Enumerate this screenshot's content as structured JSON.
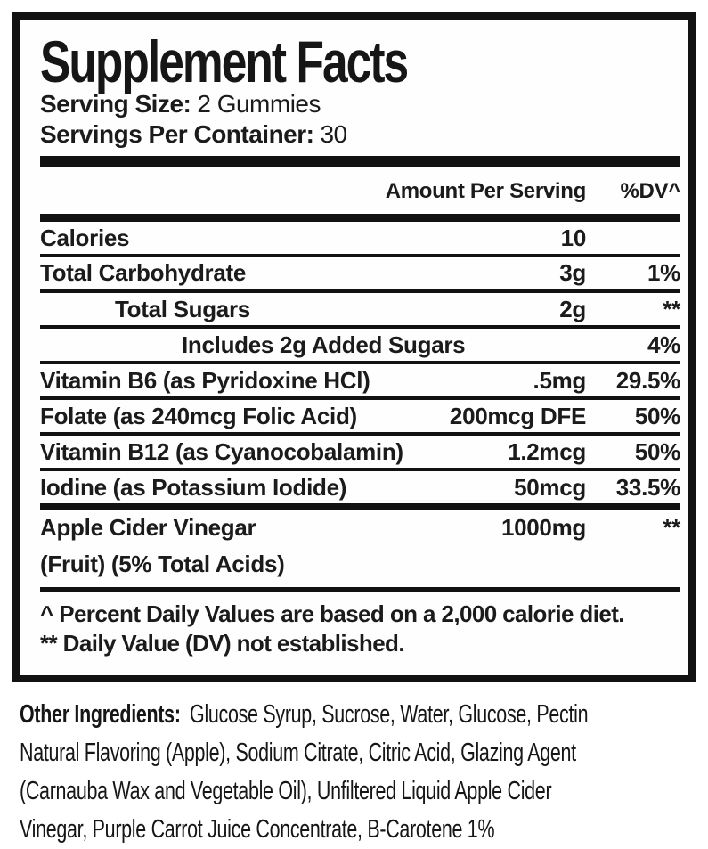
{
  "colors": {
    "text": "#1b1b1b",
    "rules": "#121212",
    "background": "#ffffff"
  },
  "panel": {
    "title": "Supplement Facts",
    "serving_size": {
      "label": "Serving Size:",
      "value": "2 Gummies"
    },
    "servings_per_container": {
      "label": "Servings Per Container:",
      "value": "30"
    },
    "columns": {
      "amount": "Amount Per Serving",
      "dv": "%DV^"
    },
    "rows": [
      {
        "label": "Calories",
        "amount": "10",
        "dv": ""
      },
      {
        "label": "Total Carbohydrate",
        "amount": "3g",
        "dv": "1%"
      },
      {
        "label": "Total Sugars",
        "amount": "2g",
        "dv": "**"
      },
      {
        "label": "Includes 2g Added Sugars",
        "amount": "",
        "dv": "4%"
      },
      {
        "label": "Vitamin B6 (as Pyridoxine HCl)",
        "amount": ".5mg",
        "dv": "29.5%"
      },
      {
        "label": "Folate (as 240mcg Folic Acid)",
        "amount": "200mcg DFE",
        "dv": "50%"
      },
      {
        "label": "Vitamin B12 (as Cyanocobalamin)",
        "amount": "1.2mcg",
        "dv": "50%"
      },
      {
        "label": "Iodine (as Potassium Iodide)",
        "amount": "50mcg",
        "dv": "33.5%"
      },
      {
        "label": "Apple Cider Vinegar",
        "label2": "(Fruit) (5% Total Acids)",
        "amount": "1000mg",
        "dv": "**"
      }
    ],
    "footnotes": [
      "^ Percent Daily Values are based on a 2,000 calorie diet.",
      "** Daily Value (DV) not established."
    ]
  },
  "other_ingredients": {
    "label": "Other Ingredients:",
    "lines": [
      "Glucose Syrup, Sucrose, Water, Glucose, Pectin",
      "Natural Flavoring (Apple), Sodium Citrate, Citric Acid, Glazing Agent",
      "(Carnauba Wax and Vegetable Oil), Unfiltered Liquid Apple Cider",
      "Vinegar, Purple Carrot Juice Concentrate, B-Carotene 1%"
    ]
  }
}
